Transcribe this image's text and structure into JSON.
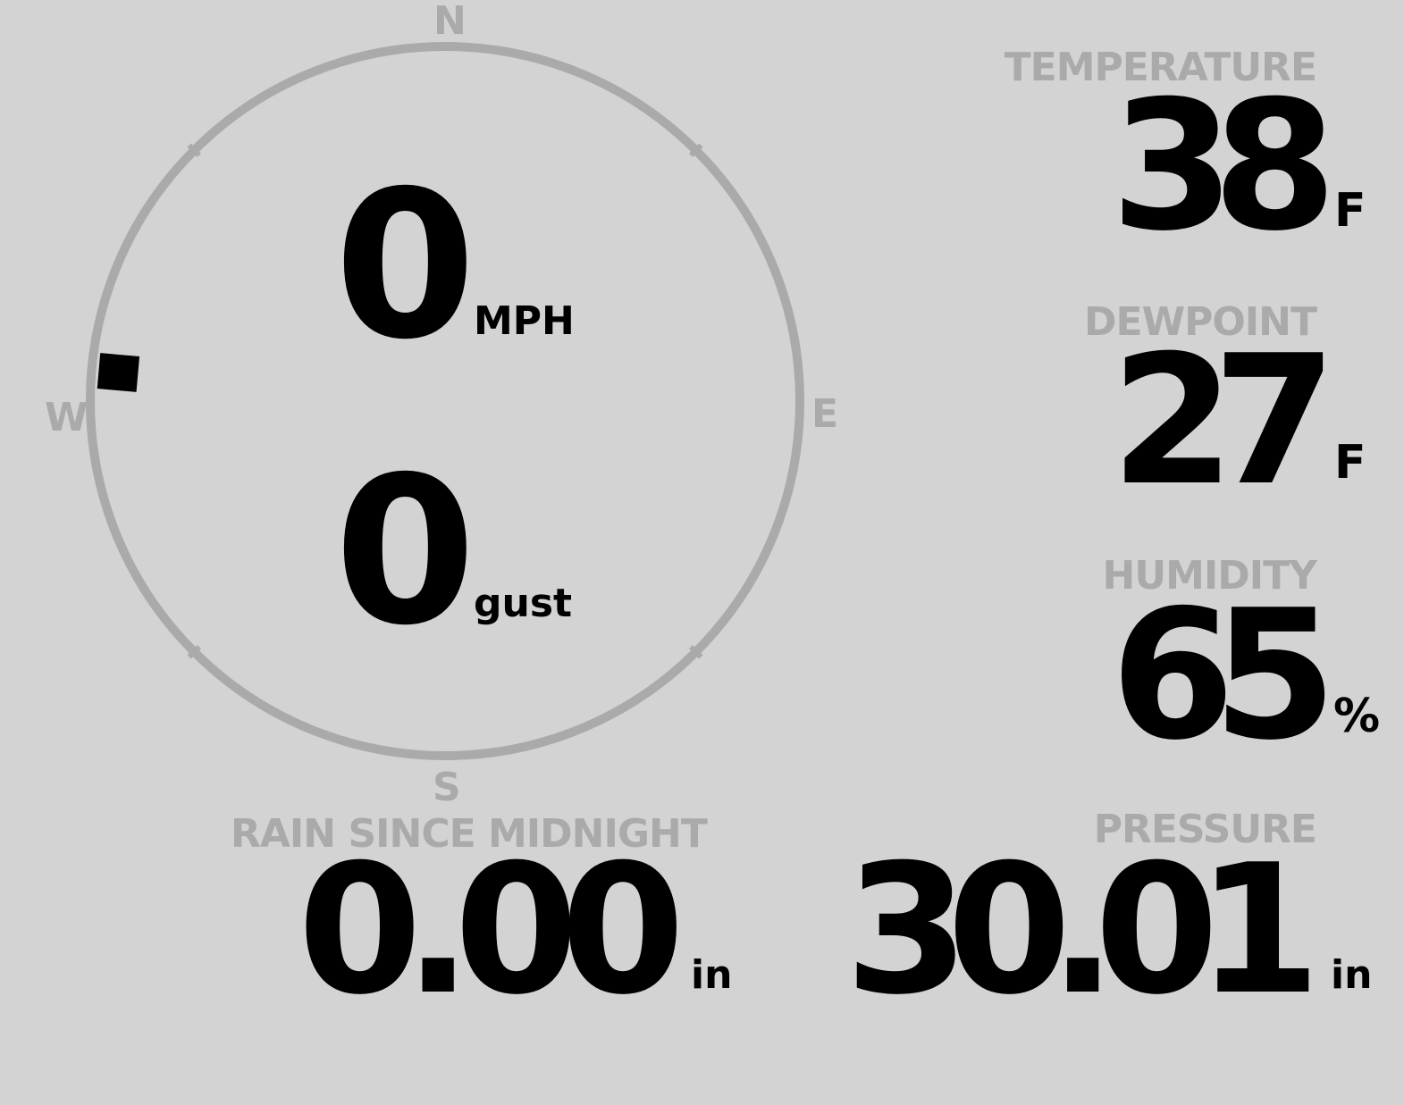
{
  "compass": {
    "north": "N",
    "south": "S",
    "east": "E",
    "west": "W",
    "wind_direction_deg": 275,
    "ring_color": "#aaaaaa",
    "marker_color": "#000000"
  },
  "wind": {
    "speed": "0",
    "speed_unit": "MPH",
    "gust": "0",
    "gust_unit": "gust"
  },
  "temperature": {
    "label": "TEMPERATURE",
    "value": "38",
    "unit": "F"
  },
  "dewpoint": {
    "label": "DEWPOINT",
    "value": "27",
    "unit": "F"
  },
  "humidity": {
    "label": "HUMIDITY",
    "value": "65",
    "unit": "%"
  },
  "pressure": {
    "label": "PRESSURE",
    "value": "30.01",
    "unit": "in"
  },
  "rain": {
    "label": "RAIN SINCE MIDNIGHT",
    "value": "0.00",
    "unit": "in"
  },
  "colors": {
    "background": "#d3d3d3",
    "label": "#aaaaaa",
    "value": "#000000"
  }
}
